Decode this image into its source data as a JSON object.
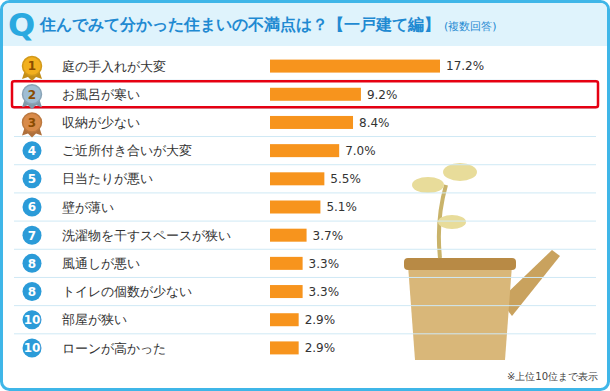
{
  "chart_data": {
    "type": "bar",
    "orientation": "horizontal",
    "title": "住んでみて分かった住まいの不満点は？【一戸建て編】",
    "subtitle": "(複数回答)",
    "annotations": [
      "Q",
      "※上位10位まで表示"
    ],
    "ranks": [
      1,
      2,
      3,
      4,
      5,
      6,
      7,
      8,
      8,
      10,
      10
    ],
    "categories": [
      "庭の手入れが大変",
      "お風呂が寒い",
      "収納が少ない",
      "ご近所付き合いが大変",
      "日当たりが悪い",
      "壁が薄い",
      "洗濯物を干すスペースが狭い",
      "風通しが悪い",
      "トイレの個数が少ない",
      "部屋が狭い",
      "ローンが高かった"
    ],
    "values": [
      17.2,
      9.2,
      8.4,
      7.0,
      5.5,
      5.1,
      3.7,
      3.3,
      3.3,
      2.9,
      2.9
    ],
    "value_labels": [
      "17.2%",
      "9.2%",
      "8.4%",
      "7.0%",
      "5.5%",
      "5.1%",
      "3.7%",
      "3.3%",
      "3.3%",
      "2.9%",
      "2.9%"
    ],
    "data_labels": true,
    "color": "#f7941d",
    "xlim": [
      0,
      17.2
    ],
    "tick_labels": false,
    "grid": false
  }
}
